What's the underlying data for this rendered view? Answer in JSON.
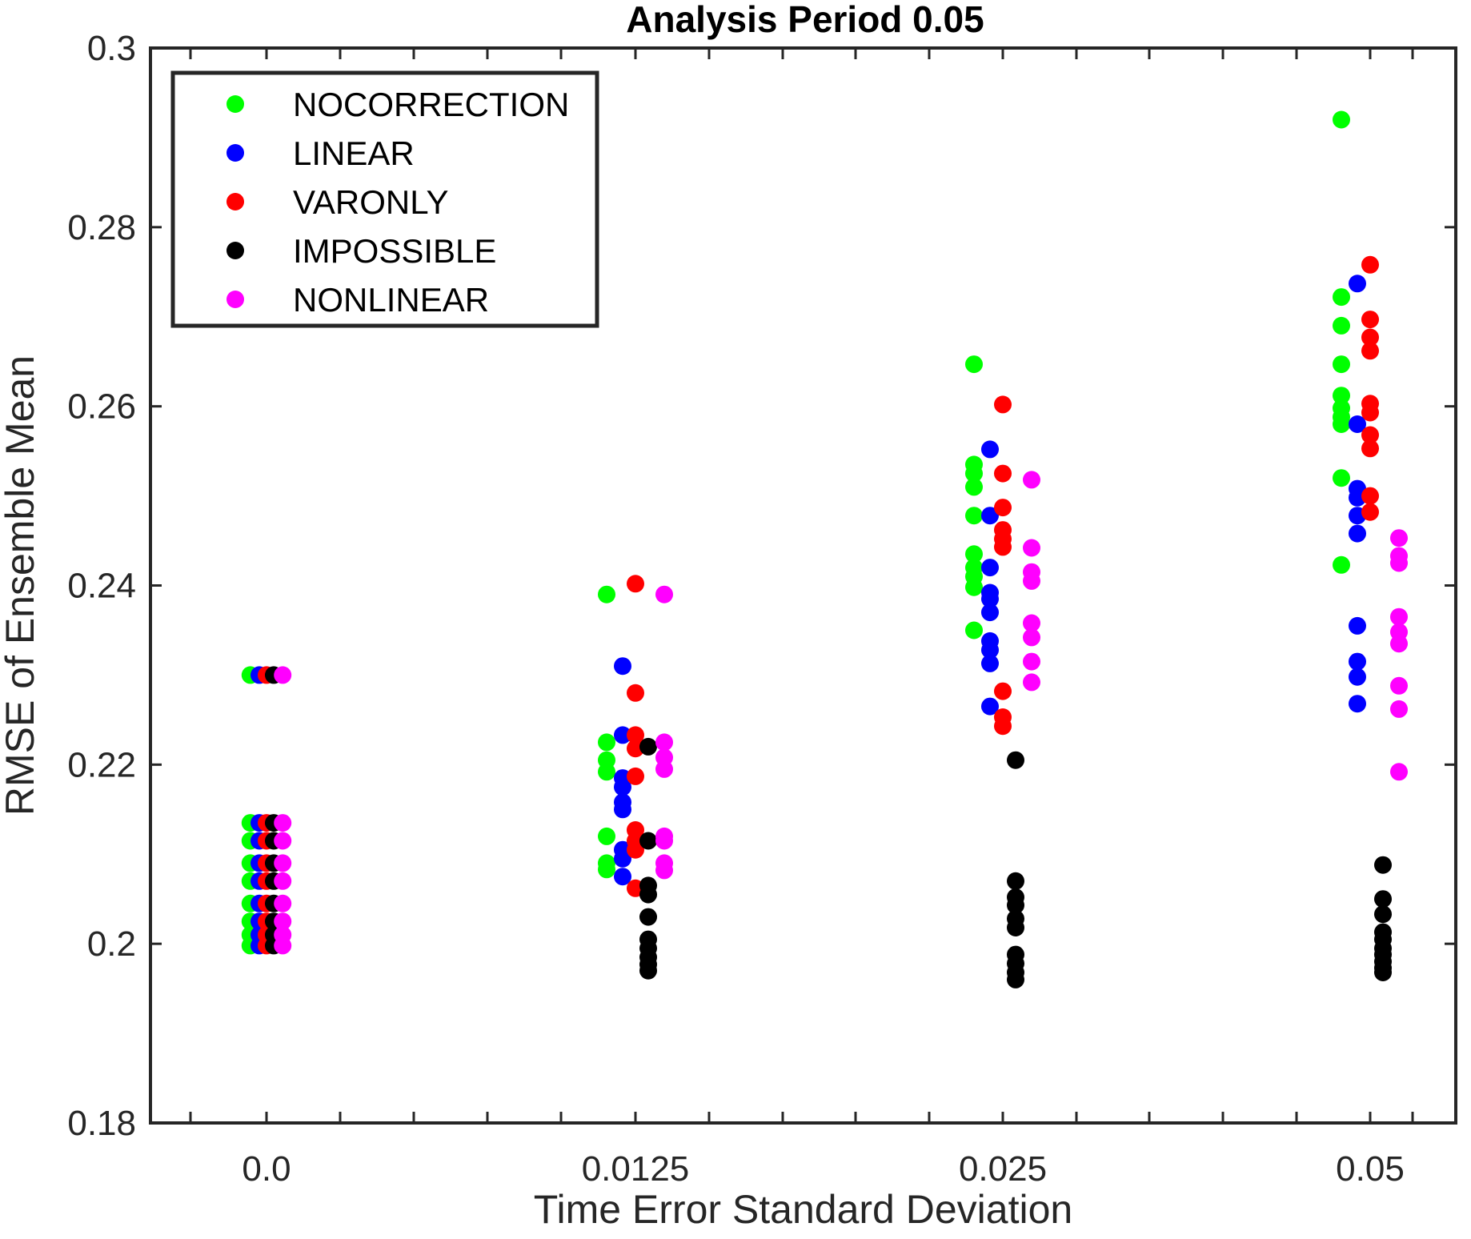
{
  "chart_data": {
    "type": "scatter",
    "title": "Analysis Period 0.05",
    "xlabel": "Time Error Standard Deviation",
    "ylabel": "RMSE of Ensemble Mean",
    "ylim": [
      0.18,
      0.3
    ],
    "yticks": [
      "0.18",
      "0.2",
      "0.22",
      "0.24",
      "0.26",
      "0.28",
      "0.3"
    ],
    "categories": [
      "0.0",
      "0.0125",
      "0.025",
      "0.05"
    ],
    "grid": false,
    "legend_position": "top-left",
    "series": [
      {
        "name": "NOCORRECTION",
        "color": "#00ff00",
        "points": [
          [
            0,
            0.23
          ],
          [
            0,
            0.2135
          ],
          [
            0,
            0.2115
          ],
          [
            0,
            0.209
          ],
          [
            0,
            0.207
          ],
          [
            0,
            0.2045
          ],
          [
            0,
            0.2025
          ],
          [
            0,
            0.201
          ],
          [
            0,
            0.1998
          ],
          [
            1,
            0.239
          ],
          [
            1,
            0.2225
          ],
          [
            1,
            0.2205
          ],
          [
            1,
            0.2192
          ],
          [
            1,
            0.212
          ],
          [
            1,
            0.209
          ],
          [
            1,
            0.2083
          ],
          [
            2,
            0.2647
          ],
          [
            2,
            0.2535
          ],
          [
            2,
            0.2525
          ],
          [
            2,
            0.251
          ],
          [
            2,
            0.2478
          ],
          [
            2,
            0.2435
          ],
          [
            2,
            0.242
          ],
          [
            2,
            0.241
          ],
          [
            2,
            0.2398
          ],
          [
            2,
            0.235
          ],
          [
            3,
            0.292
          ],
          [
            3,
            0.2722
          ],
          [
            3,
            0.269
          ],
          [
            3,
            0.2647
          ],
          [
            3,
            0.2612
          ],
          [
            3,
            0.2598
          ],
          [
            3,
            0.2588
          ],
          [
            3,
            0.258
          ],
          [
            3,
            0.252
          ],
          [
            3,
            0.2423
          ]
        ]
      },
      {
        "name": "LINEAR",
        "color": "#0000ff",
        "points": [
          [
            0,
            0.23
          ],
          [
            0,
            0.2135
          ],
          [
            0,
            0.2115
          ],
          [
            0,
            0.209
          ],
          [
            0,
            0.207
          ],
          [
            0,
            0.2045
          ],
          [
            0,
            0.2025
          ],
          [
            0,
            0.201
          ],
          [
            0,
            0.1998
          ],
          [
            1,
            0.231
          ],
          [
            1,
            0.2233
          ],
          [
            1,
            0.2185
          ],
          [
            1,
            0.2175
          ],
          [
            1,
            0.2158
          ],
          [
            1,
            0.215
          ],
          [
            1,
            0.2105
          ],
          [
            1,
            0.2095
          ],
          [
            1,
            0.2075
          ],
          [
            2,
            0.2552
          ],
          [
            2,
            0.2478
          ],
          [
            2,
            0.242
          ],
          [
            2,
            0.2392
          ],
          [
            2,
            0.2385
          ],
          [
            2,
            0.237
          ],
          [
            2,
            0.2338
          ],
          [
            2,
            0.2328
          ],
          [
            2,
            0.2313
          ],
          [
            2,
            0.2265
          ],
          [
            3,
            0.2737
          ],
          [
            3,
            0.258
          ],
          [
            3,
            0.2508
          ],
          [
            3,
            0.2498
          ],
          [
            3,
            0.2478
          ],
          [
            3,
            0.2458
          ],
          [
            3,
            0.2355
          ],
          [
            3,
            0.2315
          ],
          [
            3,
            0.2298
          ],
          [
            3,
            0.2268
          ]
        ]
      },
      {
        "name": "VARONLY",
        "color": "#ff0000",
        "points": [
          [
            0,
            0.23
          ],
          [
            0,
            0.2135
          ],
          [
            0,
            0.2115
          ],
          [
            0,
            0.209
          ],
          [
            0,
            0.207
          ],
          [
            0,
            0.2045
          ],
          [
            0,
            0.2025
          ],
          [
            0,
            0.201
          ],
          [
            0,
            0.1998
          ],
          [
            1,
            0.2402
          ],
          [
            1,
            0.228
          ],
          [
            1,
            0.2233
          ],
          [
            1,
            0.2218
          ],
          [
            1,
            0.2187
          ],
          [
            1,
            0.2127
          ],
          [
            1,
            0.2115
          ],
          [
            1,
            0.2105
          ],
          [
            1,
            0.2062
          ],
          [
            2,
            0.2602
          ],
          [
            2,
            0.2525
          ],
          [
            2,
            0.2487
          ],
          [
            2,
            0.2462
          ],
          [
            2,
            0.2452
          ],
          [
            2,
            0.2443
          ],
          [
            2,
            0.2282
          ],
          [
            2,
            0.2253
          ],
          [
            2,
            0.2243
          ],
          [
            3,
            0.2758
          ],
          [
            3,
            0.2697
          ],
          [
            3,
            0.2677
          ],
          [
            3,
            0.2662
          ],
          [
            3,
            0.2603
          ],
          [
            3,
            0.2593
          ],
          [
            3,
            0.2568
          ],
          [
            3,
            0.2553
          ],
          [
            3,
            0.25
          ],
          [
            3,
            0.2482
          ]
        ]
      },
      {
        "name": "IMPOSSIBLE",
        "color": "#000000",
        "points": [
          [
            0,
            0.23
          ],
          [
            0,
            0.2135
          ],
          [
            0,
            0.2115
          ],
          [
            0,
            0.209
          ],
          [
            0,
            0.207
          ],
          [
            0,
            0.2045
          ],
          [
            0,
            0.2025
          ],
          [
            0,
            0.201
          ],
          [
            0,
            0.1998
          ],
          [
            1,
            0.222
          ],
          [
            1,
            0.2115
          ],
          [
            1,
            0.2065
          ],
          [
            1,
            0.2055
          ],
          [
            1,
            0.203
          ],
          [
            1,
            0.2005
          ],
          [
            1,
            0.1995
          ],
          [
            1,
            0.1985
          ],
          [
            1,
            0.1977
          ],
          [
            1,
            0.197
          ],
          [
            2,
            0.2205
          ],
          [
            2,
            0.207
          ],
          [
            2,
            0.2052
          ],
          [
            2,
            0.2043
          ],
          [
            2,
            0.2028
          ],
          [
            2,
            0.2018
          ],
          [
            2,
            0.1988
          ],
          [
            2,
            0.1978
          ],
          [
            2,
            0.1968
          ],
          [
            2,
            0.196
          ],
          [
            3,
            0.2088
          ],
          [
            3,
            0.205
          ],
          [
            3,
            0.2033
          ],
          [
            3,
            0.2013
          ],
          [
            3,
            0.2005
          ],
          [
            3,
            0.1995
          ],
          [
            3,
            0.1988
          ],
          [
            3,
            0.198
          ],
          [
            3,
            0.1973
          ],
          [
            3,
            0.1968
          ]
        ]
      },
      {
        "name": "NONLINEAR",
        "color": "#ff00ff",
        "points": [
          [
            0,
            0.23
          ],
          [
            0,
            0.2135
          ],
          [
            0,
            0.2115
          ],
          [
            0,
            0.209
          ],
          [
            0,
            0.207
          ],
          [
            0,
            0.2045
          ],
          [
            0,
            0.2025
          ],
          [
            0,
            0.201
          ],
          [
            0,
            0.1998
          ],
          [
            1,
            0.239
          ],
          [
            1,
            0.2225
          ],
          [
            1,
            0.2208
          ],
          [
            1,
            0.2195
          ],
          [
            1,
            0.212
          ],
          [
            1,
            0.2115
          ],
          [
            1,
            0.209
          ],
          [
            1,
            0.2082
          ],
          [
            2,
            0.2518
          ],
          [
            2,
            0.2442
          ],
          [
            2,
            0.2415
          ],
          [
            2,
            0.2405
          ],
          [
            2,
            0.2358
          ],
          [
            2,
            0.2342
          ],
          [
            2,
            0.2315
          ],
          [
            2,
            0.2292
          ],
          [
            3,
            0.2453
          ],
          [
            3,
            0.2433
          ],
          [
            3,
            0.2425
          ],
          [
            3,
            0.2365
          ],
          [
            3,
            0.2348
          ],
          [
            3,
            0.2335
          ],
          [
            3,
            0.2288
          ],
          [
            3,
            0.2262
          ],
          [
            3,
            0.2192
          ]
        ]
      }
    ]
  }
}
